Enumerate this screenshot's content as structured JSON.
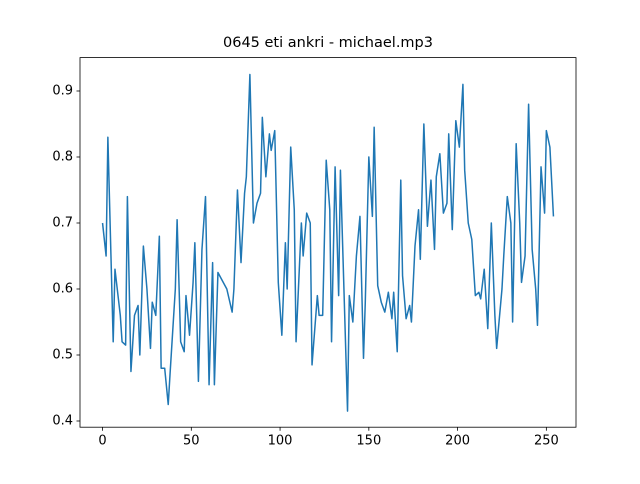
{
  "chart_data": {
    "type": "line",
    "title": "0645 eti ankri - michael.mp3",
    "x": [
      0,
      2,
      3,
      6,
      7,
      10,
      11,
      13,
      14,
      16,
      18,
      20,
      21,
      23,
      25,
      27,
      28,
      30,
      32,
      33,
      35,
      37,
      38,
      41,
      42,
      44,
      46,
      47,
      49,
      51,
      52,
      54,
      56,
      58,
      60,
      62,
      63,
      65,
      67,
      70,
      73,
      74,
      76,
      78,
      80,
      81,
      83,
      85,
      87,
      89,
      90,
      92,
      94,
      95,
      97,
      99,
      101,
      103,
      104,
      106,
      108,
      109,
      112,
      113,
      115,
      117,
      118,
      121,
      122,
      124,
      126,
      128,
      129,
      131,
      133,
      134,
      138,
      139,
      141,
      143,
      145,
      147,
      148,
      150,
      152,
      153,
      155,
      157,
      159,
      161,
      163,
      164,
      166,
      168,
      169,
      171,
      173,
      174,
      176,
      178,
      179,
      181,
      183,
      185,
      187,
      188,
      190,
      192,
      194,
      195,
      197,
      199,
      201,
      203,
      204,
      206,
      208,
      210,
      212,
      213,
      215,
      217,
      219,
      221,
      222,
      225,
      226,
      228,
      230,
      231,
      233,
      235,
      236,
      238,
      240,
      242,
      244,
      245,
      247,
      249,
      250,
      252,
      254
    ],
    "series": [
      {
        "color": "#1f77b4",
        "values": [
          0.7,
          0.65,
          0.83,
          0.52,
          0.63,
          0.56,
          0.52,
          0.515,
          0.74,
          0.475,
          0.56,
          0.575,
          0.5,
          0.665,
          0.6,
          0.51,
          0.58,
          0.56,
          0.68,
          0.48,
          0.48,
          0.425,
          0.47,
          0.6,
          0.705,
          0.52,
          0.505,
          0.59,
          0.53,
          0.61,
          0.67,
          0.46,
          0.66,
          0.74,
          0.455,
          0.64,
          0.455,
          0.625,
          0.615,
          0.6,
          0.565,
          0.6,
          0.75,
          0.64,
          0.745,
          0.77,
          0.925,
          0.7,
          0.73,
          0.745,
          0.86,
          0.77,
          0.835,
          0.81,
          0.84,
          0.61,
          0.53,
          0.67,
          0.6,
          0.815,
          0.72,
          0.52,
          0.7,
          0.65,
          0.715,
          0.7,
          0.485,
          0.59,
          0.56,
          0.56,
          0.795,
          0.72,
          0.52,
          0.785,
          0.59,
          0.78,
          0.415,
          0.59,
          0.55,
          0.65,
          0.71,
          0.495,
          0.58,
          0.8,
          0.71,
          0.845,
          0.605,
          0.58,
          0.565,
          0.595,
          0.555,
          0.595,
          0.505,
          0.765,
          0.62,
          0.555,
          0.575,
          0.55,
          0.665,
          0.72,
          0.645,
          0.85,
          0.695,
          0.765,
          0.66,
          0.77,
          0.805,
          0.715,
          0.73,
          0.835,
          0.69,
          0.855,
          0.815,
          0.91,
          0.78,
          0.7,
          0.675,
          0.59,
          0.595,
          0.585,
          0.63,
          0.54,
          0.7,
          0.56,
          0.51,
          0.6,
          0.65,
          0.74,
          0.7,
          0.55,
          0.82,
          0.7,
          0.61,
          0.65,
          0.88,
          0.66,
          0.6,
          0.545,
          0.785,
          0.715,
          0.84,
          0.815,
          0.71
        ]
      }
    ],
    "xlim": [
      -12.7,
      266.7
    ],
    "ylim": [
      0.3906,
      0.9506
    ],
    "xticks": [
      0,
      50,
      100,
      150,
      200,
      250
    ],
    "yticks": [
      0.4,
      0.5,
      0.6,
      0.7,
      0.8,
      0.9
    ]
  }
}
